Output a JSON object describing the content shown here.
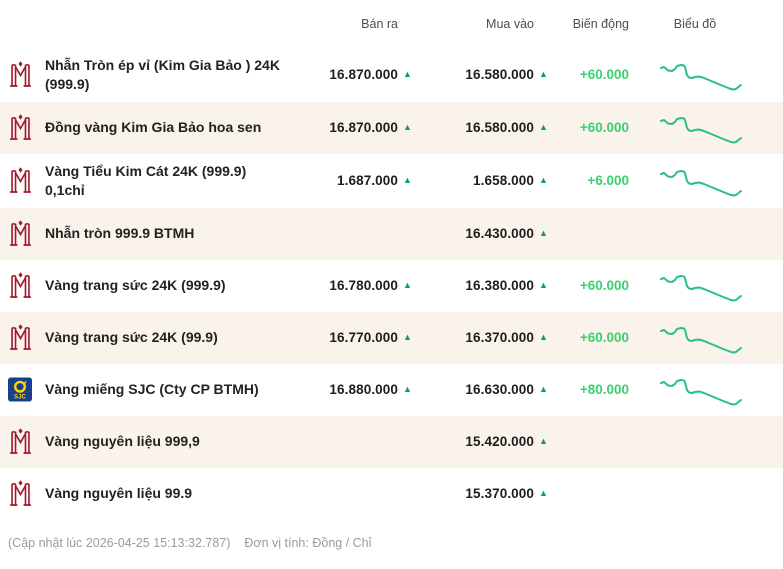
{
  "header": {
    "columns": [
      "Bán ra",
      "Mua vào",
      "Biến động",
      "Biểu đồ"
    ]
  },
  "rows": [
    {
      "label": "Nhẫn Tròn ép vỉ (Kim Gia Bảo ) 24K (999.9)",
      "icon": "btmc",
      "sell": "16.870.000",
      "sell_arrow": "▲",
      "buy": "16.580.000",
      "buy_arrow": "▲",
      "change": "+60.000",
      "has_chart": true
    },
    {
      "label": "Đồng vàng Kim Gia Bảo hoa sen",
      "icon": "btmc",
      "sell": "16.870.000",
      "sell_arrow": "▲",
      "buy": "16.580.000",
      "buy_arrow": "▲",
      "change": "+60.000",
      "has_chart": true
    },
    {
      "label": "Vàng Tiểu Kim Cát 24K (999.9) 0,1chỉ",
      "icon": "btmc",
      "sell": "1.687.000",
      "sell_arrow": "▲",
      "buy": "1.658.000",
      "buy_arrow": "▲",
      "change": "+6.000",
      "has_chart": true
    },
    {
      "label": "Nhẫn tròn 999.9 BTMH",
      "icon": "btmc",
      "sell": "",
      "sell_arrow": "",
      "buy": "16.430.000",
      "buy_arrow": "▲",
      "change": "",
      "has_chart": false
    },
    {
      "label": "Vàng trang sức 24K (999.9)",
      "icon": "btmc",
      "sell": "16.780.000",
      "sell_arrow": "▲",
      "buy": "16.380.000",
      "buy_arrow": "▲",
      "change": "+60.000",
      "has_chart": true
    },
    {
      "label": "Vàng trang sức 24K (99.9)",
      "icon": "btmc",
      "sell": "16.770.000",
      "sell_arrow": "▲",
      "buy": "16.370.000",
      "buy_arrow": "▲",
      "change": "+60.000",
      "has_chart": true
    },
    {
      "label": "Vàng miếng SJC (Cty CP BTMH)",
      "icon": "sjc",
      "sell": "16.880.000",
      "sell_arrow": "▲",
      "buy": "16.630.000",
      "buy_arrow": "▲",
      "change": "+80.000",
      "has_chart": true
    },
    {
      "label": "Vàng nguyên liệu 999,9",
      "icon": "btmc",
      "sell": "",
      "sell_arrow": "",
      "buy": "15.420.000",
      "buy_arrow": "▲",
      "change": "",
      "has_chart": false
    },
    {
      "label": "Vàng nguyên liệu 99.9",
      "icon": "btmc",
      "sell": "",
      "sell_arrow": "",
      "buy": "15.370.000",
      "buy_arrow": "▲",
      "change": "",
      "has_chart": false
    }
  ],
  "footer": {
    "updated": "(Cập nhật lúc 2026-04-25 15:13:32.787)",
    "unit": "Đơn vị tính: Đồng / Chỉ"
  },
  "colors": {
    "row_alt_bg": "#faf3eb",
    "arrow_green": "#0ba14d",
    "change_green": "#3ad06e",
    "sparkline_green": "#2bbd8d",
    "btmc_red": "#9e1b30",
    "sjc_blue": "#17418d",
    "sjc_yellow": "#ffd400"
  },
  "sparkline": {
    "width": 84,
    "height": 32,
    "points": [
      [
        2,
        9
      ],
      [
        5,
        8
      ],
      [
        9,
        11.5
      ],
      [
        13,
        12
      ],
      [
        16,
        10
      ],
      [
        18,
        7
      ],
      [
        22,
        6
      ],
      [
        25,
        6.5
      ],
      [
        26,
        8
      ],
      [
        27,
        12
      ],
      [
        28,
        16
      ],
      [
        30,
        18.5
      ],
      [
        33,
        19
      ],
      [
        36,
        18
      ],
      [
        40,
        17.5
      ],
      [
        45,
        19
      ],
      [
        51,
        21.5
      ],
      [
        57,
        24
      ],
      [
        63,
        26.5
      ],
      [
        68,
        28.5
      ],
      [
        72,
        30
      ],
      [
        75,
        30.5
      ],
      [
        77,
        30
      ],
      [
        80,
        27.5
      ],
      [
        82,
        26
      ]
    ]
  }
}
